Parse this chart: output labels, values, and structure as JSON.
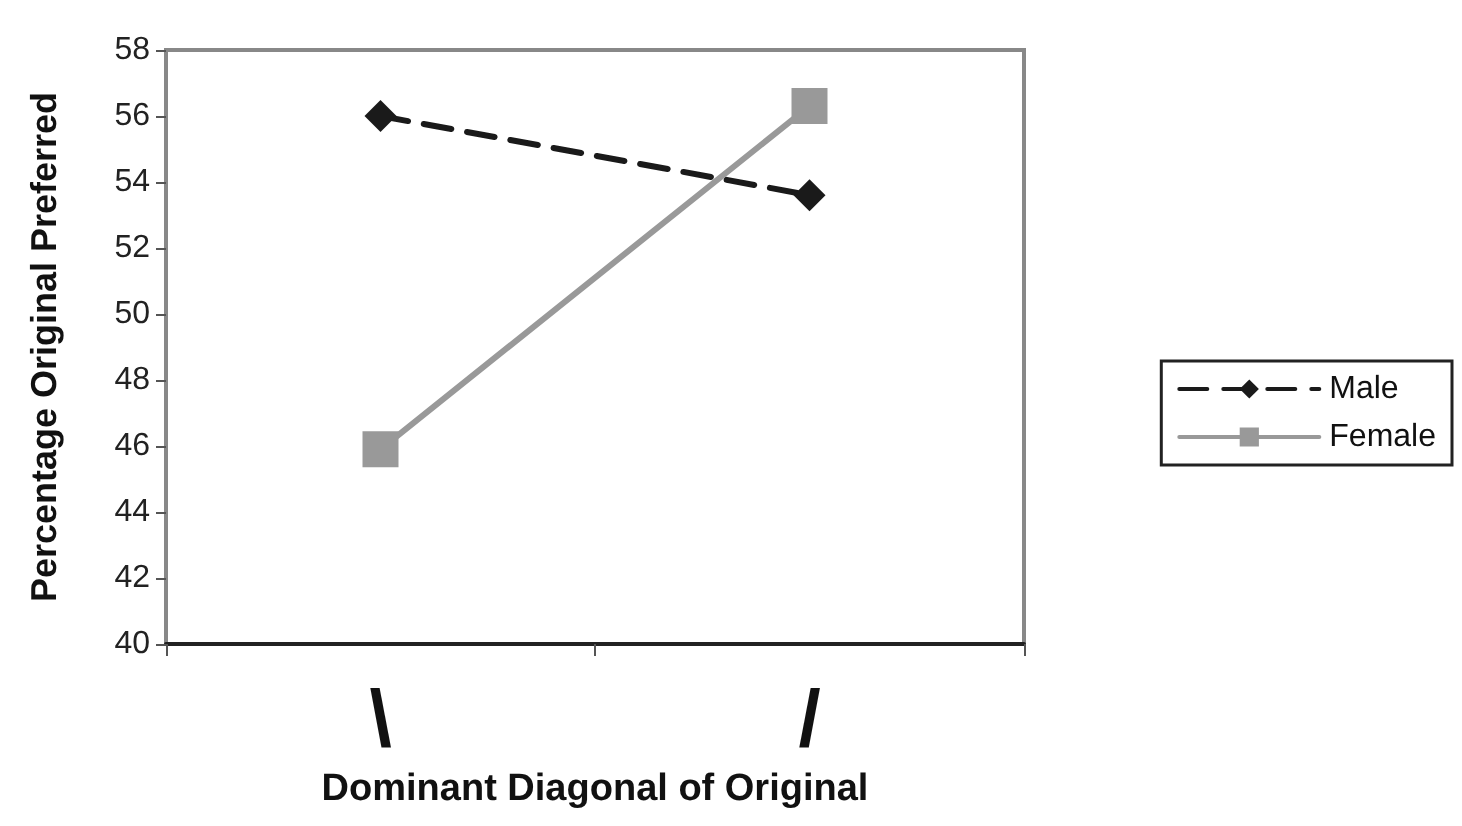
{
  "chart_data": {
    "type": "line",
    "xlabel": "Dominant Diagonal of Original",
    "ylabel": "Percentage Original Preferred",
    "categories": [
      "\\",
      "/"
    ],
    "series": [
      {
        "name": "Male",
        "color": "#1a1a1a",
        "values": [
          56.0,
          53.6
        ],
        "marker": "diamond",
        "line_style": "dashed"
      },
      {
        "name": "Female",
        "color": "#999999",
        "values": [
          45.9,
          56.3
        ],
        "marker": "square",
        "line_style": "solid"
      }
    ],
    "ylim": [
      40,
      58
    ],
    "yticks": [
      40,
      42,
      44,
      46,
      48,
      50,
      52,
      54,
      56,
      58
    ],
    "grid": false,
    "legend": "right"
  }
}
